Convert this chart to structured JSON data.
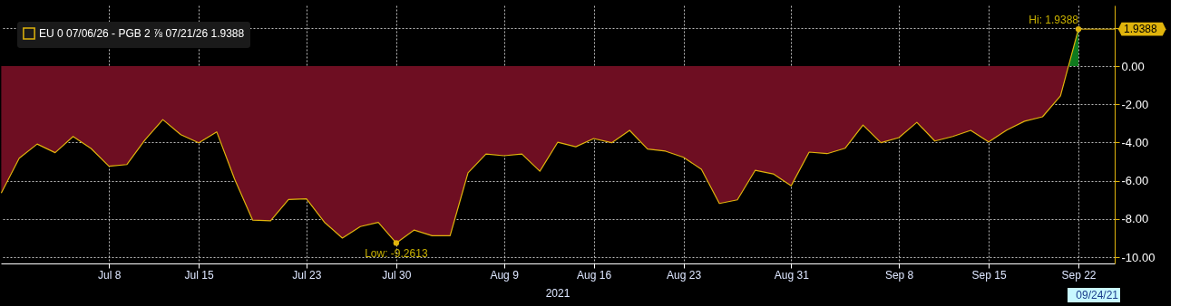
{
  "chart_data": {
    "type": "area",
    "categories": [
      null,
      null,
      null,
      null,
      null,
      null,
      "Jul 8",
      null,
      null,
      null,
      null,
      "Jul 15",
      null,
      null,
      null,
      null,
      null,
      "Jul 23",
      null,
      null,
      null,
      null,
      "Jul 30",
      null,
      null,
      null,
      null,
      null,
      "Aug 9",
      null,
      null,
      null,
      null,
      "Aug 16",
      null,
      null,
      null,
      null,
      "Aug 23",
      null,
      null,
      null,
      null,
      null,
      "Aug 31",
      null,
      null,
      null,
      null,
      null,
      "Sep 8",
      null,
      null,
      null,
      null,
      "Sep 15",
      null,
      null,
      null,
      null,
      "Sep 22",
      null,
      null
    ],
    "series": [
      {
        "name": "EU 0 07/06/26 - PGB 2 ⅞ 07/21/26 1.9388",
        "color": "#e0b40c",
        "values": [
          -6.64,
          -4.82,
          -4.08,
          -4.53,
          -3.68,
          -4.31,
          -5.24,
          -5.15,
          -3.87,
          -2.8,
          -3.59,
          -4.01,
          -3.44,
          -5.92,
          -8.06,
          -8.1,
          -6.98,
          -6.95,
          -8.17,
          -9.0,
          -8.4,
          -8.18,
          -9.2613,
          -8.58,
          -8.88,
          -8.88,
          -5.58,
          -4.6,
          -4.69,
          -4.6,
          -5.5,
          -3.98,
          -4.22,
          -3.79,
          -4.01,
          -3.36,
          -4.34,
          -4.45,
          -4.77,
          -5.4,
          -7.19,
          -7.0,
          -5.45,
          -5.64,
          -6.26,
          -4.5,
          -4.58,
          -4.3,
          -3.08,
          -4.01,
          -3.74,
          -2.94,
          -3.92,
          -3.68,
          -3.36,
          -3.97,
          -3.35,
          -2.88,
          -2.65,
          -1.55,
          1.9388,
          null,
          null
        ]
      }
    ],
    "colors": [
      "#6e0e22",
      "#0f7a1e"
    ],
    "ylim": [
      -10.33,
      3.18
    ],
    "yticks": [
      {
        "value": 2,
        "label": null
      },
      {
        "value": 0,
        "label": "0.00"
      },
      {
        "value": -2,
        "label": "-2.00"
      },
      {
        "value": -4,
        "label": "-4.00"
      },
      {
        "value": -6,
        "label": "-6.00"
      },
      {
        "value": -8,
        "label": "-8.00"
      },
      {
        "value": -10,
        "label": "-10.00"
      }
    ],
    "grid": true,
    "legend": "top left",
    "line_style": "solid",
    "annotations": [
      {
        "text": "Low: -9.2613",
        "x": "Jul 30",
        "y": -9.2613
      },
      {
        "text": "Hi: 1.9388",
        "x": "Sep 22",
        "y": 1.9388
      },
      "1.9388",
      "2021",
      "09/24/21"
    ]
  }
}
